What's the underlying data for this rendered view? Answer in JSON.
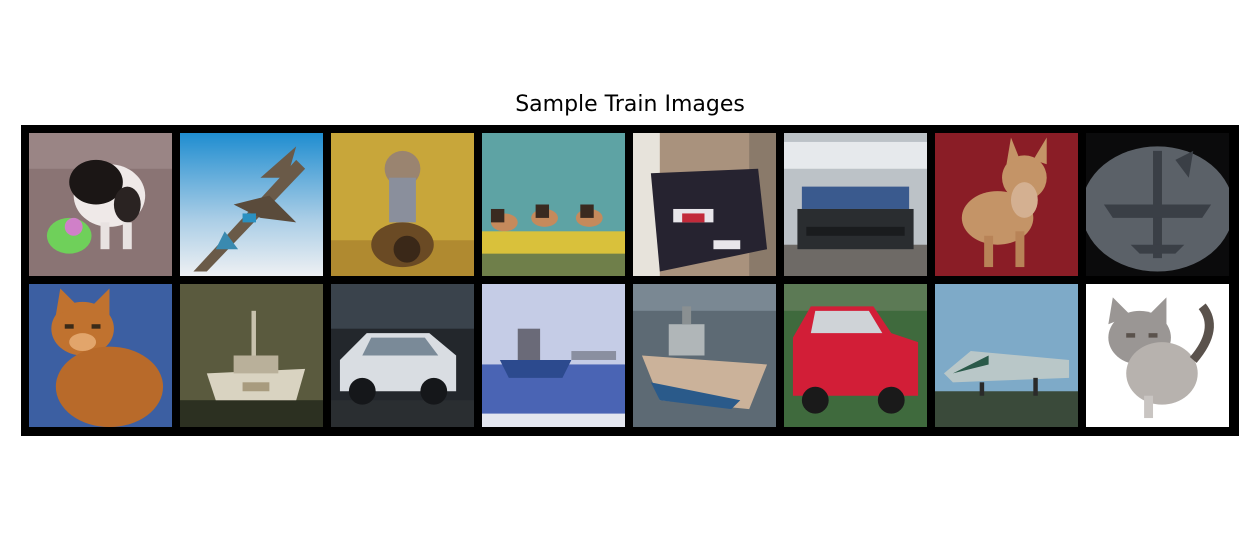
{
  "figure": {
    "title": "Sample Train Images"
  },
  "images": [
    {
      "row": 0,
      "col": 0,
      "subject": "dog",
      "colors": {
        "bg": "#8a7474",
        "main": "#1b1615",
        "accent": "#6fd05a"
      }
    },
    {
      "row": 0,
      "col": 1,
      "subject": "airplane",
      "colors": {
        "bg": "#62a6d6",
        "main": "#6a5a48",
        "accent": "#e9ecf0"
      }
    },
    {
      "row": 0,
      "col": 2,
      "subject": "bird",
      "colors": {
        "bg": "#c8a63a",
        "main": "#8a8f9c",
        "accent": "#6a4a24"
      }
    },
    {
      "row": 0,
      "col": 3,
      "subject": "boat",
      "colors": {
        "bg": "#5ea3a4",
        "main": "#d9c13b",
        "accent": "#c58a5c"
      }
    },
    {
      "row": 0,
      "col": 4,
      "subject": "car",
      "colors": {
        "bg": "#a9927d",
        "main": "#262330",
        "accent": "#e8e6ea"
      }
    },
    {
      "row": 0,
      "col": 5,
      "subject": "car",
      "colors": {
        "bg": "#bcc2c7",
        "main": "#2a2d30",
        "accent": "#3a5a8e"
      }
    },
    {
      "row": 0,
      "col": 6,
      "subject": "dog",
      "colors": {
        "bg": "#8a1d26",
        "main": "#c49467",
        "accent": "#d4b091"
      }
    },
    {
      "row": 0,
      "col": 7,
      "subject": "airplane",
      "colors": {
        "bg": "#5b6168",
        "main": "#3a3f46",
        "accent": "#0b0b0c"
      }
    },
    {
      "row": 1,
      "col": 0,
      "subject": "cat",
      "colors": {
        "bg": "#3c5fa2",
        "main": "#c0722f",
        "accent": "#e2a56b"
      }
    },
    {
      "row": 1,
      "col": 1,
      "subject": "boat",
      "colors": {
        "bg": "#5a5a3e",
        "main": "#d9d3c1",
        "accent": "#2c3021"
      }
    },
    {
      "row": 1,
      "col": 2,
      "subject": "car",
      "colors": {
        "bg": "#23272c",
        "main": "#d9dde2",
        "accent": "#7a8a98"
      }
    },
    {
      "row": 1,
      "col": 3,
      "subject": "boat",
      "colors": {
        "bg": "#c5cce6",
        "main": "#2c4a8e",
        "accent": "#e3e6ef"
      }
    },
    {
      "row": 1,
      "col": 4,
      "subject": "boat",
      "colors": {
        "bg": "#5d6a74",
        "main": "#cbb29a",
        "accent": "#2a5a8a"
      }
    },
    {
      "row": 1,
      "col": 5,
      "subject": "car",
      "colors": {
        "bg": "#3f6a3d",
        "main": "#d21e37",
        "accent": "#cfd3d7"
      }
    },
    {
      "row": 1,
      "col": 6,
      "subject": "airplane",
      "colors": {
        "bg": "#7eaac8",
        "main": "#b9c7c8",
        "accent": "#3a4a3a"
      }
    },
    {
      "row": 1,
      "col": 7,
      "subject": "cat",
      "colors": {
        "bg": "#ffffff",
        "main": "#9a9694",
        "accent": "#5a524c"
      }
    }
  ]
}
